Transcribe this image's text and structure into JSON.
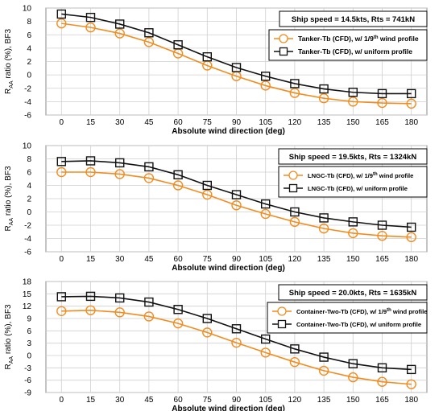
{
  "chart_data": [
    {
      "type": "line",
      "x": [
        0,
        15,
        30,
        45,
        60,
        75,
        90,
        105,
        120,
        135,
        150,
        165,
        180
      ],
      "xlabel": "Absolute wind direction (deg)",
      "ylabel_main": "R",
      "ylabel_sub": "AA",
      "ylabel_rest": " ratio (%), BF3",
      "ylim": [
        -6,
        10
      ],
      "ystep": 2,
      "grid": true,
      "infobox": "Ship speed = 14.5kts, Rts = 741kN",
      "legend_placement": "top-right",
      "series": [
        {
          "name": "Tanker-Tb (CFD), w/ 1/9th wind profile",
          "legend_prefix": "Tanker-Tb (CFD), w/ 1/9",
          "legend_sup": "th",
          "legend_suffix": " wind profile",
          "color": "#f28c1e",
          "marker": "circle",
          "values": [
            7.7,
            7.1,
            6.2,
            4.9,
            3.2,
            1.4,
            -0.2,
            -1.6,
            -2.7,
            -3.5,
            -4.0,
            -4.2,
            -4.3
          ]
        },
        {
          "name": "Tanker-Tb (CFD), w/ uniform profile",
          "legend_prefix": "Tanker-Tb (CFD), w/ uniform profile",
          "legend_sup": "",
          "legend_suffix": "",
          "color": "#111111",
          "marker": "square",
          "values": [
            9.1,
            8.6,
            7.6,
            6.3,
            4.5,
            2.7,
            1.1,
            -0.2,
            -1.3,
            -2.1,
            -2.6,
            -2.8,
            -2.8
          ]
        }
      ]
    },
    {
      "type": "line",
      "x": [
        0,
        15,
        30,
        45,
        60,
        75,
        90,
        105,
        120,
        135,
        150,
        165,
        180
      ],
      "xlabel": "Absolute wind direction (deg)",
      "ylabel_main": "R",
      "ylabel_sub": "AA",
      "ylabel_rest": " ratio (%), BF3",
      "ylim": [
        -6,
        10
      ],
      "ystep": 2,
      "grid": true,
      "infobox": "Ship speed = 19.5kts, Rts = 1324kN",
      "legend_placement": "top-right",
      "series": [
        {
          "name": "LNGC-Tb (CFD), w/ 1/9th wind profile",
          "legend_prefix": "LNGC-Tb (CFD), w/ 1/9",
          "legend_sup": "th",
          "legend_suffix": " wind profile",
          "color": "#f28c1e",
          "marker": "circle",
          "values": [
            6.0,
            6.0,
            5.7,
            5.1,
            4.0,
            2.6,
            1.0,
            -0.3,
            -1.5,
            -2.5,
            -3.2,
            -3.6,
            -3.8
          ]
        },
        {
          "name": "LNGC-Tb (CFD), w/ uniform profile",
          "legend_prefix": "LNGC-Tb (CFD), w/ uniform profile",
          "legend_sup": "",
          "legend_suffix": "",
          "color": "#111111",
          "marker": "square",
          "values": [
            7.6,
            7.7,
            7.4,
            6.8,
            5.6,
            4.0,
            2.6,
            1.2,
            0.0,
            -0.9,
            -1.5,
            -2.0,
            -2.3
          ]
        }
      ]
    },
    {
      "type": "line",
      "x": [
        0,
        15,
        30,
        45,
        60,
        75,
        90,
        105,
        120,
        135,
        150,
        165,
        180
      ],
      "xlabel": "Absolute wind direction (deg)",
      "ylabel_main": "R",
      "ylabel_sub": "AA",
      "ylabel_rest": " ratio (%), BF3",
      "ylim": [
        -9,
        18
      ],
      "ystep": 3,
      "grid": true,
      "infobox": "Ship speed = 20.0kts, Rts = 1635kN",
      "legend_placement": "top-right",
      "series": [
        {
          "name": "Container-Two-Tb (CFD), w/ 1/9th wind profile",
          "legend_prefix": "Container-Two-Tb (CFD), w/ 1/9",
          "legend_sup": "th",
          "legend_suffix": " wind profile",
          "color": "#f28c1e",
          "marker": "circle",
          "values": [
            10.8,
            11.0,
            10.5,
            9.5,
            7.8,
            5.6,
            3.1,
            0.7,
            -1.6,
            -3.7,
            -5.3,
            -6.4,
            -7.0
          ]
        },
        {
          "name": "Container-Two-Tb (CFD), w/ uniform profile",
          "legend_prefix": "Container-Two-Tb (CFD), w/ uniform profile",
          "legend_sup": "",
          "legend_suffix": "",
          "color": "#111111",
          "marker": "square",
          "values": [
            14.3,
            14.4,
            14.0,
            13.0,
            11.2,
            9.0,
            6.5,
            4.0,
            1.6,
            -0.4,
            -2.0,
            -3.0,
            -3.4
          ]
        }
      ]
    }
  ]
}
